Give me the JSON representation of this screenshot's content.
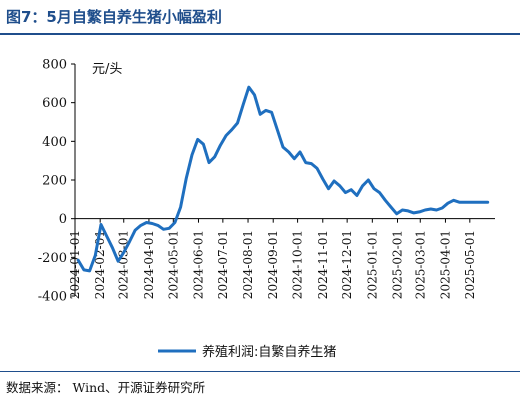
{
  "header": {
    "title": "图7：5月自繁自养生猪小幅盈利"
  },
  "footer": {
    "source": "数据来源： Wind、开源证券研究所"
  },
  "chart_data": {
    "type": "line",
    "title": "图7：5月自繁自养生猪小幅盈利",
    "ylabel": "元/头",
    "xlabel": "",
    "ylim": [
      -400,
      800
    ],
    "yticks": [
      -400,
      -200,
      0,
      200,
      400,
      600,
      800
    ],
    "xlim": [
      "2024-01-01",
      "2025-06-01"
    ],
    "xticks": [
      "2024-01-01",
      "2024-02-01",
      "2024-03-01",
      "2024-04-01",
      "2024-05-01",
      "2024-06-01",
      "2024-07-01",
      "2024-08-01",
      "2024-09-01",
      "2024-10-01",
      "2024-11-01",
      "2024-12-01",
      "2025-01-01",
      "2025-02-01",
      "2025-03-01",
      "2025-04-01",
      "2025-05-01"
    ],
    "grid": false,
    "legend_position": "bottom-center",
    "colors": {
      "series": "#1f6fbf",
      "axis": "#000000"
    },
    "series": [
      {
        "name": "养殖利润:自繁自养生猪",
        "x": [
          "2024-01-05",
          "2024-01-12",
          "2024-01-19",
          "2024-01-26",
          "2024-02-02",
          "2024-02-09",
          "2024-02-16",
          "2024-02-23",
          "2024-03-01",
          "2024-03-08",
          "2024-03-15",
          "2024-03-22",
          "2024-03-29",
          "2024-04-05",
          "2024-04-12",
          "2024-04-19",
          "2024-04-26",
          "2024-05-03",
          "2024-05-10",
          "2024-05-17",
          "2024-05-24",
          "2024-05-31",
          "2024-06-07",
          "2024-06-14",
          "2024-06-21",
          "2024-06-28",
          "2024-07-05",
          "2024-07-12",
          "2024-07-19",
          "2024-07-26",
          "2024-08-02",
          "2024-08-09",
          "2024-08-16",
          "2024-08-23",
          "2024-08-30",
          "2024-09-06",
          "2024-09-13",
          "2024-09-20",
          "2024-09-27",
          "2024-10-04",
          "2024-10-11",
          "2024-10-18",
          "2024-10-25",
          "2024-11-01",
          "2024-11-08",
          "2024-11-15",
          "2024-11-22",
          "2024-11-29",
          "2024-12-06",
          "2024-12-13",
          "2024-12-20",
          "2024-12-27",
          "2025-01-03",
          "2025-01-10",
          "2025-01-17",
          "2025-01-24",
          "2025-01-31",
          "2025-02-07",
          "2025-02-14",
          "2025-02-21",
          "2025-02-28",
          "2025-03-07",
          "2025-03-14",
          "2025-03-21",
          "2025-03-28",
          "2025-04-04",
          "2025-04-11",
          "2025-04-18",
          "2025-04-25",
          "2025-05-02",
          "2025-05-09",
          "2025-05-16",
          "2025-05-23"
        ],
        "values": [
          -215,
          -265,
          -270,
          -190,
          -30,
          -90,
          -150,
          -220,
          -175,
          -120,
          -60,
          -35,
          -20,
          -25,
          -35,
          -55,
          -50,
          -20,
          60,
          210,
          330,
          410,
          385,
          290,
          320,
          380,
          430,
          460,
          495,
          590,
          680,
          640,
          540,
          560,
          550,
          460,
          370,
          345,
          310,
          345,
          290,
          285,
          260,
          205,
          155,
          195,
          170,
          135,
          150,
          120,
          170,
          200,
          155,
          135,
          95,
          60,
          25,
          45,
          40,
          30,
          35,
          45,
          50,
          45,
          55,
          80,
          95,
          85,
          85,
          85,
          85,
          85,
          85
        ]
      }
    ]
  }
}
